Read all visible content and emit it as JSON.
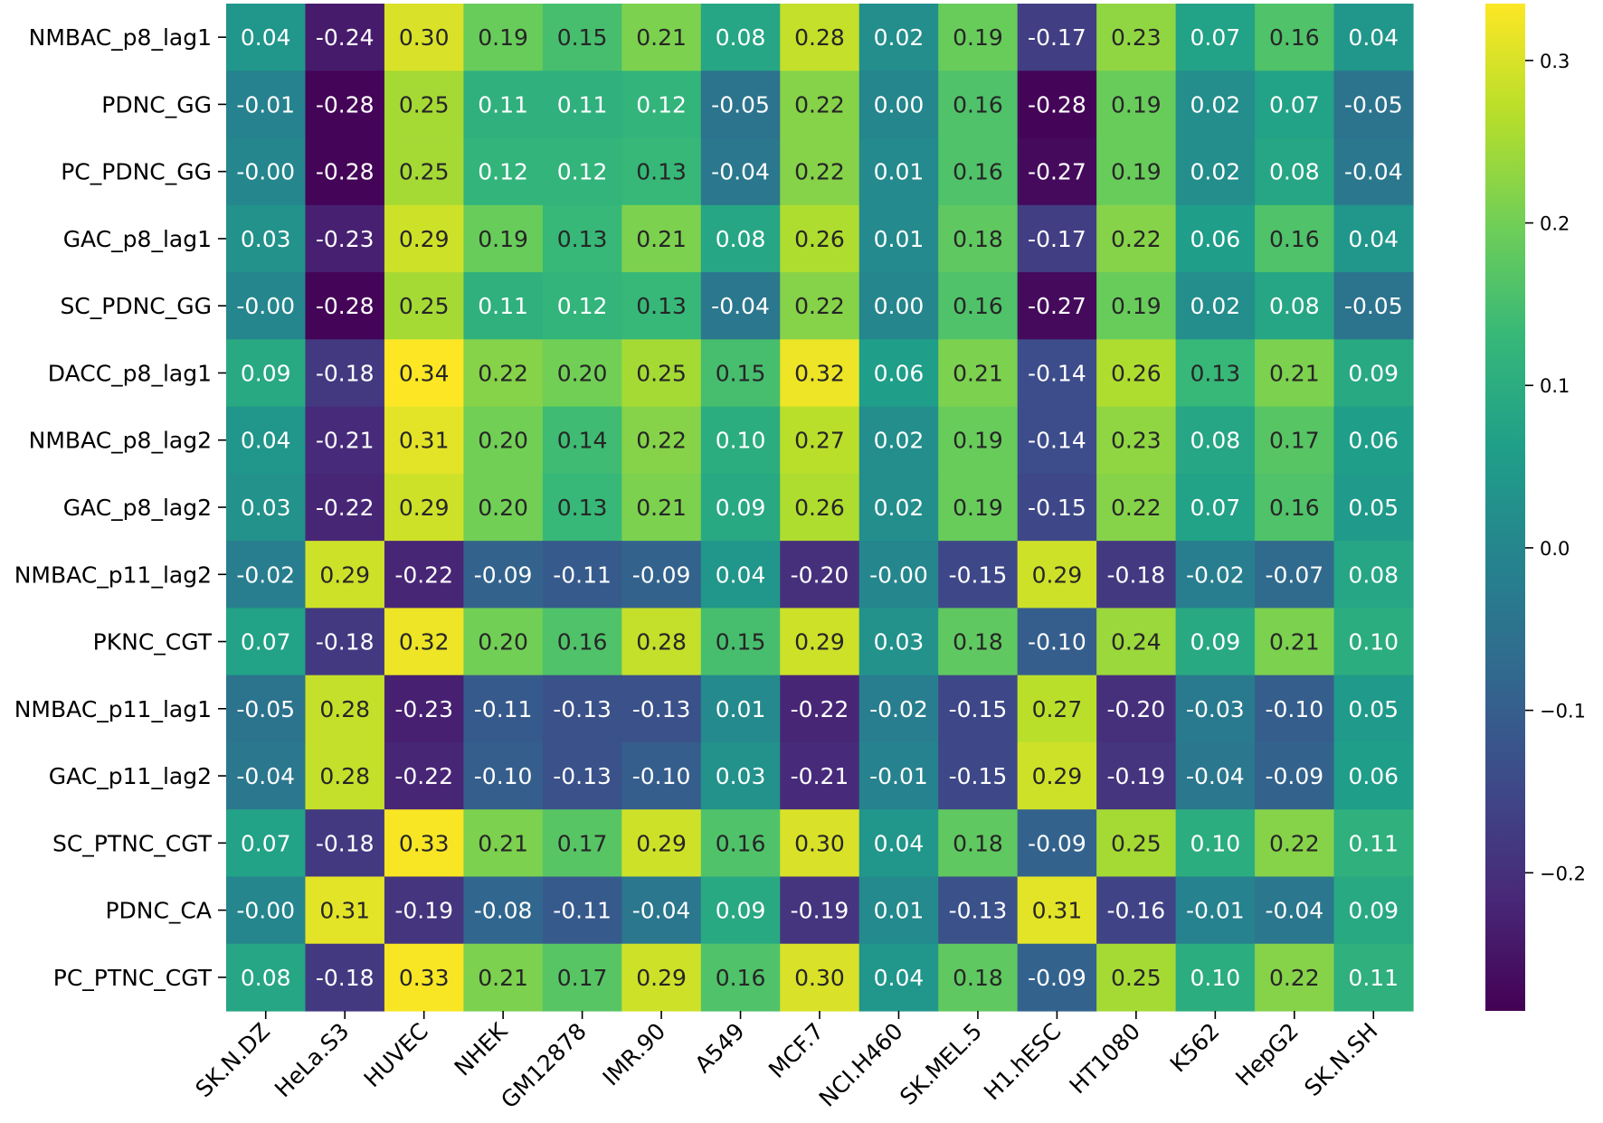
{
  "chart_data": {
    "type": "heatmap",
    "title": "",
    "xlabel": "",
    "ylabel": "",
    "rows": [
      "NMBAC_p8_lag1",
      "PDNC_GG",
      "PC_PDNC_GG",
      "GAC_p8_lag1",
      "SC_PDNC_GG",
      "DACC_p8_lag1",
      "NMBAC_p8_lag2",
      "GAC_p8_lag2",
      "NMBAC_p11_lag2",
      "PKNC_CGT",
      "NMBAC_p11_lag1",
      "GAC_p11_lag2",
      "SC_PTNC_CGT",
      "PDNC_CA",
      "PC_PTNC_CGT"
    ],
    "columns": [
      "SK.N.DZ",
      "HeLa.S3",
      "HUVEC",
      "NHEK",
      "GM12878",
      "IMR.90",
      "A549",
      "MCF.7",
      "NCI.H460",
      "SK.MEL.5",
      "H1.hESC",
      "HT1080",
      "K562",
      "HepG2",
      "SK.N.SH"
    ],
    "values": [
      [
        0.04,
        -0.24,
        0.3,
        0.19,
        0.15,
        0.21,
        0.08,
        0.28,
        0.02,
        0.19,
        -0.17,
        0.23,
        0.07,
        0.16,
        0.04
      ],
      [
        -0.01,
        -0.28,
        0.25,
        0.11,
        0.11,
        0.12,
        -0.05,
        0.22,
        0.0,
        0.16,
        -0.28,
        0.19,
        0.02,
        0.07,
        -0.05
      ],
      [
        -0.0,
        -0.28,
        0.25,
        0.12,
        0.12,
        0.13,
        -0.04,
        0.22,
        0.01,
        0.16,
        -0.27,
        0.19,
        0.02,
        0.08,
        -0.04
      ],
      [
        0.03,
        -0.23,
        0.29,
        0.19,
        0.13,
        0.21,
        0.08,
        0.26,
        0.01,
        0.18,
        -0.17,
        0.22,
        0.06,
        0.16,
        0.04
      ],
      [
        -0.0,
        -0.28,
        0.25,
        0.11,
        0.12,
        0.13,
        -0.04,
        0.22,
        0.0,
        0.16,
        -0.27,
        0.19,
        0.02,
        0.08,
        -0.05
      ],
      [
        0.09,
        -0.18,
        0.34,
        0.22,
        0.2,
        0.25,
        0.15,
        0.32,
        0.06,
        0.21,
        -0.14,
        0.26,
        0.13,
        0.21,
        0.09
      ],
      [
        0.04,
        -0.21,
        0.31,
        0.2,
        0.14,
        0.22,
        0.1,
        0.27,
        0.02,
        0.19,
        -0.14,
        0.23,
        0.08,
        0.17,
        0.06
      ],
      [
        0.03,
        -0.22,
        0.29,
        0.2,
        0.13,
        0.21,
        0.09,
        0.26,
        0.02,
        0.19,
        -0.15,
        0.22,
        0.07,
        0.16,
        0.05
      ],
      [
        -0.02,
        0.29,
        -0.22,
        -0.09,
        -0.11,
        -0.09,
        0.04,
        -0.2,
        -0.0,
        -0.15,
        0.29,
        -0.18,
        -0.02,
        -0.07,
        0.08
      ],
      [
        0.07,
        -0.18,
        0.32,
        0.2,
        0.16,
        0.28,
        0.15,
        0.29,
        0.03,
        0.18,
        -0.1,
        0.24,
        0.09,
        0.21,
        0.1
      ],
      [
        -0.05,
        0.28,
        -0.23,
        -0.11,
        -0.13,
        -0.13,
        0.01,
        -0.22,
        -0.02,
        -0.15,
        0.27,
        -0.2,
        -0.03,
        -0.1,
        0.05
      ],
      [
        -0.04,
        0.28,
        -0.22,
        -0.1,
        -0.13,
        -0.1,
        0.03,
        -0.21,
        -0.01,
        -0.15,
        0.29,
        -0.19,
        -0.04,
        -0.09,
        0.06
      ],
      [
        0.07,
        -0.18,
        0.33,
        0.21,
        0.17,
        0.29,
        0.16,
        0.3,
        0.04,
        0.18,
        -0.09,
        0.25,
        0.1,
        0.22,
        0.11
      ],
      [
        -0.0,
        0.31,
        -0.19,
        -0.08,
        -0.11,
        -0.04,
        0.09,
        -0.19,
        0.01,
        -0.13,
        0.31,
        -0.16,
        -0.01,
        -0.04,
        0.09
      ],
      [
        0.08,
        -0.18,
        0.33,
        0.21,
        0.17,
        0.29,
        0.16,
        0.3,
        0.04,
        0.18,
        -0.09,
        0.25,
        0.1,
        0.22,
        0.11
      ]
    ],
    "vmin": -0.285,
    "vmax": 0.335,
    "colormap": "viridis",
    "colorbar": {
      "ticks": [
        0.3,
        0.2,
        0.1,
        0.0,
        -0.1,
        -0.2
      ],
      "tick_labels": [
        "0.3",
        "0.2",
        "0.1",
        "0.0",
        "−0.1",
        "−0.2"
      ]
    },
    "annotation_format": "0.00",
    "grid": false
  }
}
